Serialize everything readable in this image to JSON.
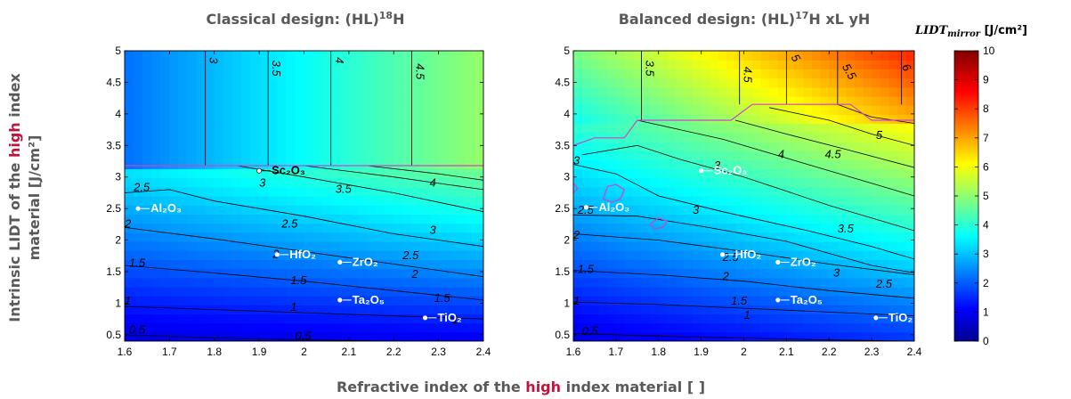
{
  "figure": {
    "xlabel_parts": [
      "Refractive index of the ",
      "high",
      " index material [ ]"
    ],
    "ylabel_line1_parts": [
      "Intrinsic LIDT of the ",
      "high",
      " index"
    ],
    "ylabel_line2": "material [J/cm²]",
    "colorbar_title_italic": "LIDT",
    "colorbar_title_sub": "mirror",
    "colorbar_title_unit": " [J/cm²]",
    "colorbar_ticks": [
      "0",
      "1",
      "2",
      "3",
      "4",
      "5",
      "6",
      "7",
      "8",
      "9",
      "10"
    ],
    "accent_color": "#c0143c",
    "boundary_color": "#cc44cc"
  },
  "chart_data": [
    {
      "type": "contour",
      "title_prefix": "Classical design: (HL)",
      "title_sup": "18",
      "title_suffix": "H",
      "xlim": [
        1.6,
        2.4
      ],
      "ylim": [
        0.4,
        5
      ],
      "x_ticks": [
        "1.6",
        "1.7",
        "1.8",
        "1.9",
        "2",
        "2.1",
        "2.2",
        "2.3",
        "2.4"
      ],
      "y_ticks": [
        "0.5",
        "1",
        "1.5",
        "2",
        "2.5",
        "3",
        "3.5",
        "4",
        "4.5",
        "5"
      ],
      "colorbar_range": [
        0,
        10
      ],
      "vertical_contours_above_y": 3.18,
      "vertical_contours": [
        {
          "level": 3,
          "x": 1.78
        },
        {
          "level": 3.5,
          "x": 1.92
        },
        {
          "level": 4,
          "x": 2.06
        },
        {
          "level": 4.5,
          "x": 2.24
        }
      ],
      "contours": [
        {
          "level": 0.5,
          "points": [
            [
              1.6,
              0.5
            ],
            [
              1.8,
              0.45
            ],
            [
              2.0,
              0.42
            ],
            [
              2.2,
              0.4
            ]
          ]
        },
        {
          "level": 1,
          "points": [
            [
              1.6,
              0.95
            ],
            [
              1.8,
              0.9
            ],
            [
              2.0,
              0.85
            ],
            [
              2.2,
              0.8
            ],
            [
              2.4,
              0.75
            ]
          ]
        },
        {
          "level": 1.5,
          "points": [
            [
              1.6,
              1.6
            ],
            [
              1.8,
              1.48
            ],
            [
              2.0,
              1.35
            ],
            [
              2.2,
              1.2
            ],
            [
              2.4,
              1.05
            ]
          ]
        },
        {
          "level": 2,
          "points": [
            [
              1.6,
              2.2
            ],
            [
              1.8,
              2.02
            ],
            [
              2.0,
              1.82
            ],
            [
              2.2,
              1.62
            ],
            [
              2.4,
              1.42
            ]
          ]
        },
        {
          "level": 2.5,
          "points": [
            [
              1.6,
              2.75
            ],
            [
              1.7,
              2.8
            ],
            [
              1.8,
              2.62
            ],
            [
              2.0,
              2.38
            ],
            [
              2.2,
              2.1
            ],
            [
              2.4,
              1.9
            ]
          ]
        },
        {
          "level": 3,
          "points": [
            [
              1.85,
              3.18
            ],
            [
              2.0,
              3.0
            ],
            [
              2.2,
              2.75
            ],
            [
              2.4,
              2.45
            ]
          ]
        },
        {
          "level": 3.5,
          "points": [
            [
              2.0,
              3.18
            ],
            [
              2.2,
              3.0
            ],
            [
              2.4,
              2.8
            ]
          ]
        },
        {
          "level": 4,
          "points": [
            [
              2.14,
              3.18
            ],
            [
              2.3,
              3.05
            ],
            [
              2.4,
              2.95
            ]
          ]
        }
      ],
      "contour_labels": [
        {
          "text": "3",
          "x": 1.79,
          "y": 4.9,
          "rot": 90
        },
        {
          "text": "3.5",
          "x": 1.93,
          "y": 4.85,
          "rot": 90
        },
        {
          "text": "4",
          "x": 2.07,
          "y": 4.9,
          "rot": 90
        },
        {
          "text": "4.5",
          "x": 2.25,
          "y": 4.8,
          "rot": 90
        },
        {
          "text": "2.5",
          "x": 1.62,
          "y": 2.78,
          "rot": 0
        },
        {
          "text": "3",
          "x": 1.9,
          "y": 2.85,
          "rot": 0
        },
        {
          "text": "3.5",
          "x": 2.07,
          "y": 2.75,
          "rot": 0
        },
        {
          "text": "4",
          "x": 2.28,
          "y": 2.85,
          "rot": 0
        },
        {
          "text": "2.5",
          "x": 1.95,
          "y": 2.2,
          "rot": 0
        },
        {
          "text": "3",
          "x": 2.28,
          "y": 2.1,
          "rot": 0
        },
        {
          "text": "2",
          "x": 1.6,
          "y": 2.2,
          "rot": 0
        },
        {
          "text": "2",
          "x": 1.93,
          "y": 1.72,
          "rot": 0
        },
        {
          "text": "2.5",
          "x": 2.22,
          "y": 1.7,
          "rot": 0
        },
        {
          "text": "1.5",
          "x": 1.61,
          "y": 1.58,
          "rot": 0
        },
        {
          "text": "1.5",
          "x": 1.97,
          "y": 1.3,
          "rot": 0
        },
        {
          "text": "2",
          "x": 2.24,
          "y": 1.4,
          "rot": 0
        },
        {
          "text": "1",
          "x": 1.6,
          "y": 0.98,
          "rot": 0
        },
        {
          "text": "1",
          "x": 1.97,
          "y": 0.88,
          "rot": 0
        },
        {
          "text": "1.5",
          "x": 2.29,
          "y": 1.02,
          "rot": 0
        },
        {
          "text": "1",
          "x": 2.33,
          "y": 0.68,
          "rot": 0
        },
        {
          "text": "0.5",
          "x": 1.61,
          "y": 0.52,
          "rot": 0
        },
        {
          "text": "0.5",
          "x": 1.98,
          "y": 0.42,
          "rot": 0
        }
      ],
      "boundary": [
        [
          1.6,
          3.18
        ],
        [
          2.4,
          3.18
        ]
      ],
      "materials": [
        {
          "name": "Sc₂O₃",
          "x": 1.9,
          "y": 3.1,
          "dark": true
        },
        {
          "name": "Al₂O₃",
          "x": 1.63,
          "y": 2.5,
          "dark": false
        },
        {
          "name": "HfO₂",
          "x": 1.94,
          "y": 1.77,
          "dark": false
        },
        {
          "name": "ZrO₂",
          "x": 2.08,
          "y": 1.65,
          "dark": false
        },
        {
          "name": "Ta₂O₅",
          "x": 2.08,
          "y": 1.05,
          "dark": false
        },
        {
          "name": "TiO₂",
          "x": 2.27,
          "y": 0.77,
          "dark": false
        }
      ]
    },
    {
      "type": "contour",
      "title_prefix": "Balanced design: (HL)",
      "title_sup": "17",
      "title_suffix": "H xL yH",
      "xlim": [
        1.6,
        2.4
      ],
      "ylim": [
        0.4,
        5
      ],
      "x_ticks": [
        "1.6",
        "1.7",
        "1.8",
        "1.9",
        "2",
        "2.1",
        "2.2",
        "2.3",
        "2.4"
      ],
      "y_ticks": [
        "0.5",
        "1",
        "1.5",
        "2",
        "2.5",
        "3",
        "3.5",
        "4",
        "4.5",
        "5"
      ],
      "colorbar_range": [
        0,
        10
      ],
      "vertical_contours": [
        {
          "level": 3.5,
          "x": 1.76,
          "ystart": 3.9
        },
        {
          "level": 4.5,
          "x": 1.99,
          "ystart": 4.15
        },
        {
          "level": 5,
          "x": 2.1,
          "ystart": 4.15
        },
        {
          "level": 5.5,
          "x": 2.22,
          "ystart": 4.15
        },
        {
          "level": 6,
          "x": 2.37,
          "ystart": 4.15
        }
      ],
      "contours": [
        {
          "level": 0.5,
          "points": [
            [
              1.6,
              0.52
            ],
            [
              1.8,
              0.48
            ],
            [
              2.0,
              0.45
            ],
            [
              2.2,
              0.42
            ],
            [
              2.4,
              0.4
            ]
          ]
        },
        {
          "level": 1,
          "points": [
            [
              1.6,
              1.02
            ],
            [
              1.8,
              0.98
            ],
            [
              2.0,
              0.92
            ],
            [
              2.2,
              0.86
            ],
            [
              2.4,
              0.8
            ]
          ]
        },
        {
          "level": 1.5,
          "points": [
            [
              1.6,
              1.52
            ],
            [
              1.8,
              1.45
            ],
            [
              2.0,
              1.35
            ],
            [
              2.2,
              1.2
            ],
            [
              2.4,
              1.08
            ]
          ]
        },
        {
          "level": 2,
          "points": [
            [
              1.6,
              2.1
            ],
            [
              1.8,
              2.0
            ],
            [
              2.0,
              1.82
            ],
            [
              2.2,
              1.62
            ],
            [
              2.4,
              1.45
            ]
          ]
        },
        {
          "level": 2.5,
          "points": [
            [
              1.6,
              2.4
            ],
            [
              1.75,
              2.38
            ],
            [
              1.9,
              2.22
            ],
            [
              2.1,
              1.98
            ],
            [
              2.3,
              1.6
            ],
            [
              2.4,
              1.48
            ]
          ]
        },
        {
          "level": 3,
          "points": [
            [
              1.6,
              3.2
            ],
            [
              1.7,
              3.05
            ],
            [
              1.8,
              2.7
            ],
            [
              1.95,
              2.45
            ],
            [
              2.15,
              2.15
            ],
            [
              2.3,
              1.9
            ],
            [
              2.4,
              1.7
            ]
          ]
        },
        {
          "level": 3.5,
          "points": [
            [
              1.62,
              3.35
            ],
            [
              1.75,
              3.5
            ],
            [
              1.85,
              3.28
            ],
            [
              2.0,
              3.0
            ],
            [
              2.2,
              2.55
            ],
            [
              2.4,
              2.15
            ]
          ]
        },
        {
          "level": 4,
          "points": [
            [
              1.75,
              3.9
            ],
            [
              1.95,
              3.6
            ],
            [
              2.15,
              3.2
            ],
            [
              2.35,
              2.8
            ],
            [
              2.4,
              2.7
            ]
          ]
        },
        {
          "level": 4.5,
          "points": [
            [
              1.98,
              3.9
            ],
            [
              2.1,
              3.68
            ],
            [
              2.25,
              3.42
            ],
            [
              2.4,
              3.15
            ]
          ]
        },
        {
          "level": 5,
          "points": [
            [
              2.06,
              4.1
            ],
            [
              2.2,
              3.9
            ],
            [
              2.3,
              3.68
            ],
            [
              2.4,
              3.5
            ]
          ]
        },
        {
          "level": 5.5,
          "points": [
            [
              2.22,
              4.15
            ],
            [
              2.3,
              3.95
            ],
            [
              2.4,
              3.85
            ]
          ]
        }
      ],
      "contour_labels": [
        {
          "text": "3.5",
          "x": 1.77,
          "y": 4.85,
          "rot": 90
        },
        {
          "text": "4.5",
          "x": 2.0,
          "y": 4.75,
          "rot": 90
        },
        {
          "text": "5",
          "x": 2.11,
          "y": 4.9,
          "rot": 60
        },
        {
          "text": "5.5",
          "x": 2.23,
          "y": 4.75,
          "rot": 60
        },
        {
          "text": "6",
          "x": 2.37,
          "y": 4.75,
          "rot": 60
        },
        {
          "text": "3",
          "x": 1.6,
          "y": 3.2,
          "rot": 0
        },
        {
          "text": "3",
          "x": 1.93,
          "y": 3.12,
          "rot": 0
        },
        {
          "text": "4",
          "x": 2.08,
          "y": 3.3,
          "rot": 0
        },
        {
          "text": "4.5",
          "x": 2.19,
          "y": 3.3,
          "rot": 0
        },
        {
          "text": "5",
          "x": 2.31,
          "y": 3.6,
          "rot": 0
        },
        {
          "text": "2.5",
          "x": 1.61,
          "y": 2.42,
          "rot": 0
        },
        {
          "text": "3",
          "x": 1.88,
          "y": 2.42,
          "rot": 0
        },
        {
          "text": "3.5",
          "x": 2.22,
          "y": 2.12,
          "rot": 0
        },
        {
          "text": "2",
          "x": 1.6,
          "y": 2.02,
          "rot": 0
        },
        {
          "text": "2.5",
          "x": 1.95,
          "y": 1.67,
          "rot": 0
        },
        {
          "text": "3",
          "x": 2.21,
          "y": 1.42,
          "rot": 0
        },
        {
          "text": "1.5",
          "x": 1.61,
          "y": 1.48,
          "rot": 0
        },
        {
          "text": "2",
          "x": 1.95,
          "y": 1.37,
          "rot": 0
        },
        {
          "text": "2.5",
          "x": 2.31,
          "y": 1.25,
          "rot": 0
        },
        {
          "text": "1",
          "x": 1.6,
          "y": 0.98,
          "rot": 0
        },
        {
          "text": "1.5",
          "x": 1.97,
          "y": 0.98,
          "rot": 0
        },
        {
          "text": "1",
          "x": 2.0,
          "y": 0.75,
          "rot": 0
        },
        {
          "text": "0.5",
          "x": 1.62,
          "y": 0.5,
          "rot": 0
        }
      ],
      "boundary": [
        [
          1.6,
          3.5
        ],
        [
          1.65,
          3.62
        ],
        [
          1.72,
          3.62
        ],
        [
          1.75,
          3.9
        ],
        [
          1.97,
          3.9
        ],
        [
          2.02,
          4.15
        ],
        [
          2.25,
          4.15
        ],
        [
          2.3,
          3.9
        ],
        [
          2.4,
          3.9
        ]
      ],
      "boundary_blobs": [
        [
          [
            1.6,
            2.9
          ],
          [
            1.61,
            2.82
          ],
          [
            1.6,
            2.75
          ]
        ],
        [
          [
            1.67,
            2.65
          ],
          [
            1.68,
            2.85
          ],
          [
            1.7,
            2.88
          ],
          [
            1.72,
            2.8
          ],
          [
            1.71,
            2.65
          ],
          [
            1.69,
            2.6
          ],
          [
            1.67,
            2.65
          ]
        ],
        [
          [
            1.78,
            2.25
          ],
          [
            1.8,
            2.35
          ],
          [
            1.82,
            2.3
          ],
          [
            1.81,
            2.2
          ],
          [
            1.79,
            2.18
          ],
          [
            1.78,
            2.25
          ]
        ]
      ],
      "materials": [
        {
          "name": "Sc₂O₃",
          "x": 1.9,
          "y": 3.1,
          "dark": false
        },
        {
          "name": "Al₂O₃",
          "x": 1.63,
          "y": 2.52,
          "dark": false
        },
        {
          "name": "HfO₂",
          "x": 1.95,
          "y": 1.77,
          "dark": false
        },
        {
          "name": "ZrO₂",
          "x": 2.08,
          "y": 1.65,
          "dark": false
        },
        {
          "name": "Ta₂O₅",
          "x": 2.08,
          "y": 1.05,
          "dark": false
        },
        {
          "name": "TiO₂",
          "x": 2.31,
          "y": 0.77,
          "dark": false
        }
      ]
    }
  ]
}
